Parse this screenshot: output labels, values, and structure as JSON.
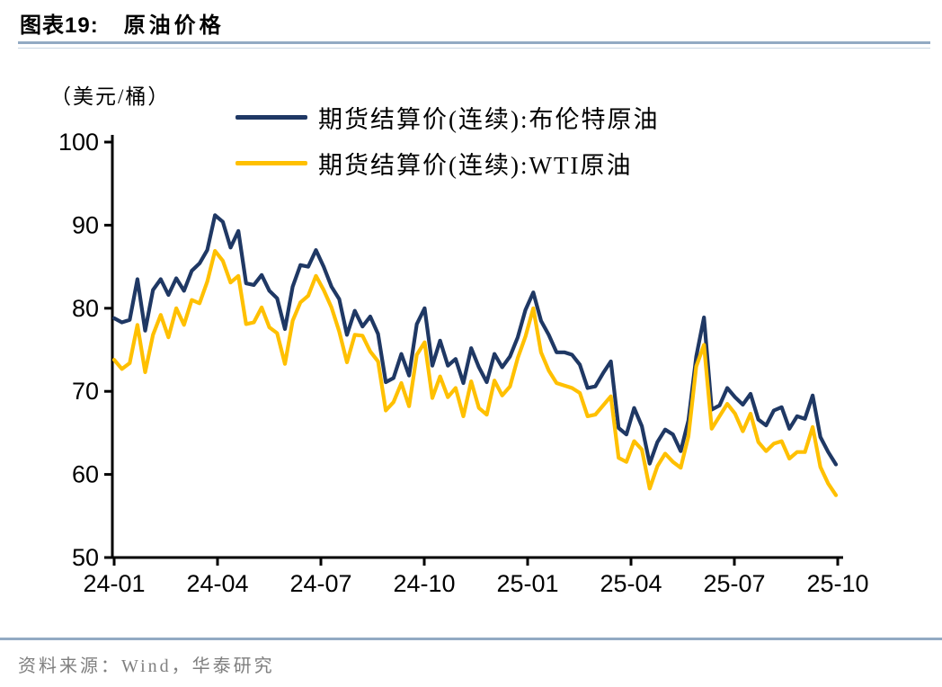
{
  "figure": {
    "number_label": "图表19:",
    "title": "原油价格",
    "unit_label": "（美元/桶）",
    "source_label": "资料来源：",
    "source_text": "Wind，华泰研究"
  },
  "colors": {
    "brent": "#1F3864",
    "wti": "#FFC000",
    "divider": "#92AAC3",
    "axis": "#000000",
    "source_text": "#7F7F7F"
  },
  "chart_data": {
    "type": "line",
    "title": "原油价格",
    "ylabel": "（美元/桶）",
    "ylim": [
      50,
      100
    ],
    "yticks": [
      100,
      90,
      80,
      70,
      60,
      50
    ],
    "xticks": [
      "24-01",
      "24-04",
      "24-07",
      "24-10",
      "25-01",
      "25-04",
      "25-07",
      "25-10"
    ],
    "x_frequency": "weekly, 2024-01 to 2025-10",
    "grid": false,
    "legend_position": "top-center",
    "series": [
      {
        "key": "brent",
        "name": "期货结算价(连续):布伦特原油",
        "color": "#1F3864",
        "values": [
          78.8,
          78.3,
          78.6,
          83.5,
          77.3,
          82.2,
          83.5,
          81.6,
          83.6,
          82.1,
          84.5,
          85.4,
          87.0,
          91.2,
          90.4,
          87.3,
          89.3,
          83.0,
          82.8,
          84.0,
          82.1,
          81.2,
          77.5,
          82.6,
          85.2,
          85.0,
          87.0,
          85.0,
          82.6,
          81.1,
          76.8,
          79.7,
          77.8,
          79.0,
          76.9,
          71.1,
          71.6,
          74.5,
          71.9,
          78.1,
          80.0,
          73.1,
          76.1,
          73.1,
          73.9,
          71.0,
          75.2,
          72.9,
          71.1,
          74.5,
          72.9,
          74.2,
          76.5,
          79.8,
          81.9,
          78.5,
          76.8,
          74.7,
          74.7,
          74.4,
          73.2,
          70.4,
          70.6,
          72.2,
          73.6,
          65.6,
          64.8,
          68.0,
          65.8,
          61.3,
          63.9,
          65.4,
          64.8,
          62.8,
          66.5,
          74.2,
          78.9,
          67.8,
          68.3,
          70.4,
          69.3,
          68.4,
          69.7,
          66.6,
          65.9,
          67.7,
          68.1,
          65.5,
          67.0,
          66.7,
          69.5,
          64.5,
          62.7,
          61.2
        ]
      },
      {
        "key": "wti",
        "name": "期货结算价(连续):WTI原油",
        "color": "#FFC000",
        "values": [
          73.8,
          72.7,
          73.4,
          78.0,
          72.3,
          76.8,
          79.2,
          76.5,
          80.0,
          78.0,
          81.0,
          80.6,
          83.2,
          86.9,
          85.7,
          83.1,
          83.9,
          78.1,
          78.3,
          80.1,
          77.7,
          77.0,
          73.3,
          78.5,
          80.7,
          81.5,
          83.9,
          82.2,
          80.1,
          77.2,
          73.5,
          76.8,
          76.7,
          74.8,
          73.6,
          67.7,
          68.7,
          71.0,
          68.2,
          74.4,
          75.9,
          69.2,
          71.8,
          69.3,
          70.4,
          67.0,
          71.2,
          68.0,
          67.2,
          71.3,
          69.5,
          70.6,
          74.0,
          76.6,
          80.0,
          74.7,
          72.5,
          71.0,
          70.7,
          70.4,
          69.8,
          67.0,
          67.2,
          68.3,
          69.4,
          62.0,
          61.5,
          64.0,
          63.0,
          58.3,
          61.0,
          62.5,
          61.5,
          60.8,
          64.6,
          73.0,
          75.6,
          65.5,
          67.0,
          68.5,
          67.3,
          65.2,
          67.3,
          63.9,
          62.8,
          63.7,
          64.0,
          61.9,
          62.7,
          62.7,
          65.7,
          60.9,
          58.9,
          57.5
        ]
      }
    ]
  }
}
